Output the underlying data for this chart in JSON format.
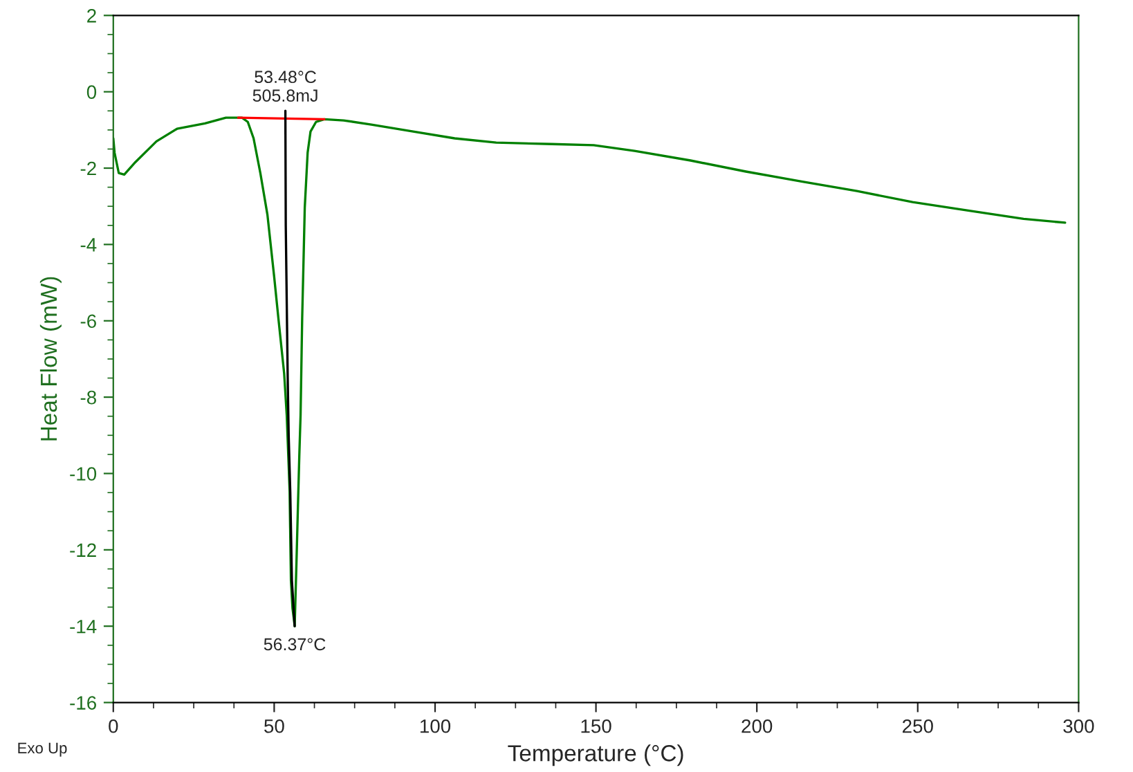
{
  "chart_data": {
    "type": "line",
    "xlabel": "Temperature (°C)",
    "ylabel": "Heat Flow (mW)",
    "xlim": [
      0,
      300
    ],
    "ylim": [
      -16,
      2
    ],
    "xticks": [
      0,
      50,
      100,
      150,
      200,
      250,
      300
    ],
    "yticks": [
      -16,
      -14,
      -12,
      -10,
      -8,
      -6,
      -4,
      -2,
      0,
      2
    ],
    "grid": false,
    "legend": false,
    "series": [
      {
        "color": "#008000",
        "x": [
          0,
          0.4,
          1.7,
          3.4,
          6.9,
          13.4,
          19.8,
          28.5,
          35,
          40,
          41.8,
          43.6,
          45.7,
          47.9,
          50,
          51.3,
          53.1,
          53.9,
          54.4,
          54.8,
          55.2,
          55.7,
          56.1,
          56.37,
          57,
          57.4,
          57.8,
          58.2,
          58.7,
          59.1,
          59.5,
          60.4,
          61.3,
          63,
          65.6,
          71.6,
          80.2,
          93.2,
          106.1,
          119,
          136.3,
          149.3,
          162,
          179.4,
          196.6,
          213.9,
          231.1,
          248.4,
          265.7,
          282.9,
          295.8
        ],
        "values": [
          -1.22,
          -1.6,
          -2.13,
          -2.17,
          -1.84,
          -1.3,
          -0.97,
          -0.83,
          -0.68,
          -0.68,
          -0.79,
          -1.22,
          -2.13,
          -3.22,
          -4.85,
          -5.93,
          -7.38,
          -8.47,
          -9.56,
          -10.46,
          -12.8,
          -13.54,
          -13.8,
          -14.0,
          -12.1,
          -10.8,
          -9.56,
          -8.47,
          -5.93,
          -4.5,
          -3.04,
          -1.59,
          -1.04,
          -0.79,
          -0.72,
          -0.75,
          -0.86,
          -1.04,
          -1.22,
          -1.33,
          -1.37,
          -1.4,
          -1.55,
          -1.8,
          -2.09,
          -2.35,
          -2.6,
          -2.89,
          -3.11,
          -3.33,
          -3.43
        ]
      },
      {
        "color": "#ff0000",
        "x": [
          38.8,
          65.6
        ],
        "values": [
          -0.68,
          -0.72
        ]
      },
      {
        "color": "#000000",
        "x": [
          53.48,
          53.6,
          54.2,
          54.5,
          55,
          55.5,
          56.37
        ],
        "values": [
          -0.5,
          -3.5,
          -7.5,
          -9,
          -10.5,
          -12.8,
          -14.0
        ]
      }
    ],
    "annotations": [
      {
        "text": "53.48°C\n505.8mJ",
        "x": 53.48,
        "y": -0.5
      },
      {
        "text": "56.37°C",
        "x": 56.37,
        "y": -14.0
      },
      "Exo Up"
    ]
  }
}
